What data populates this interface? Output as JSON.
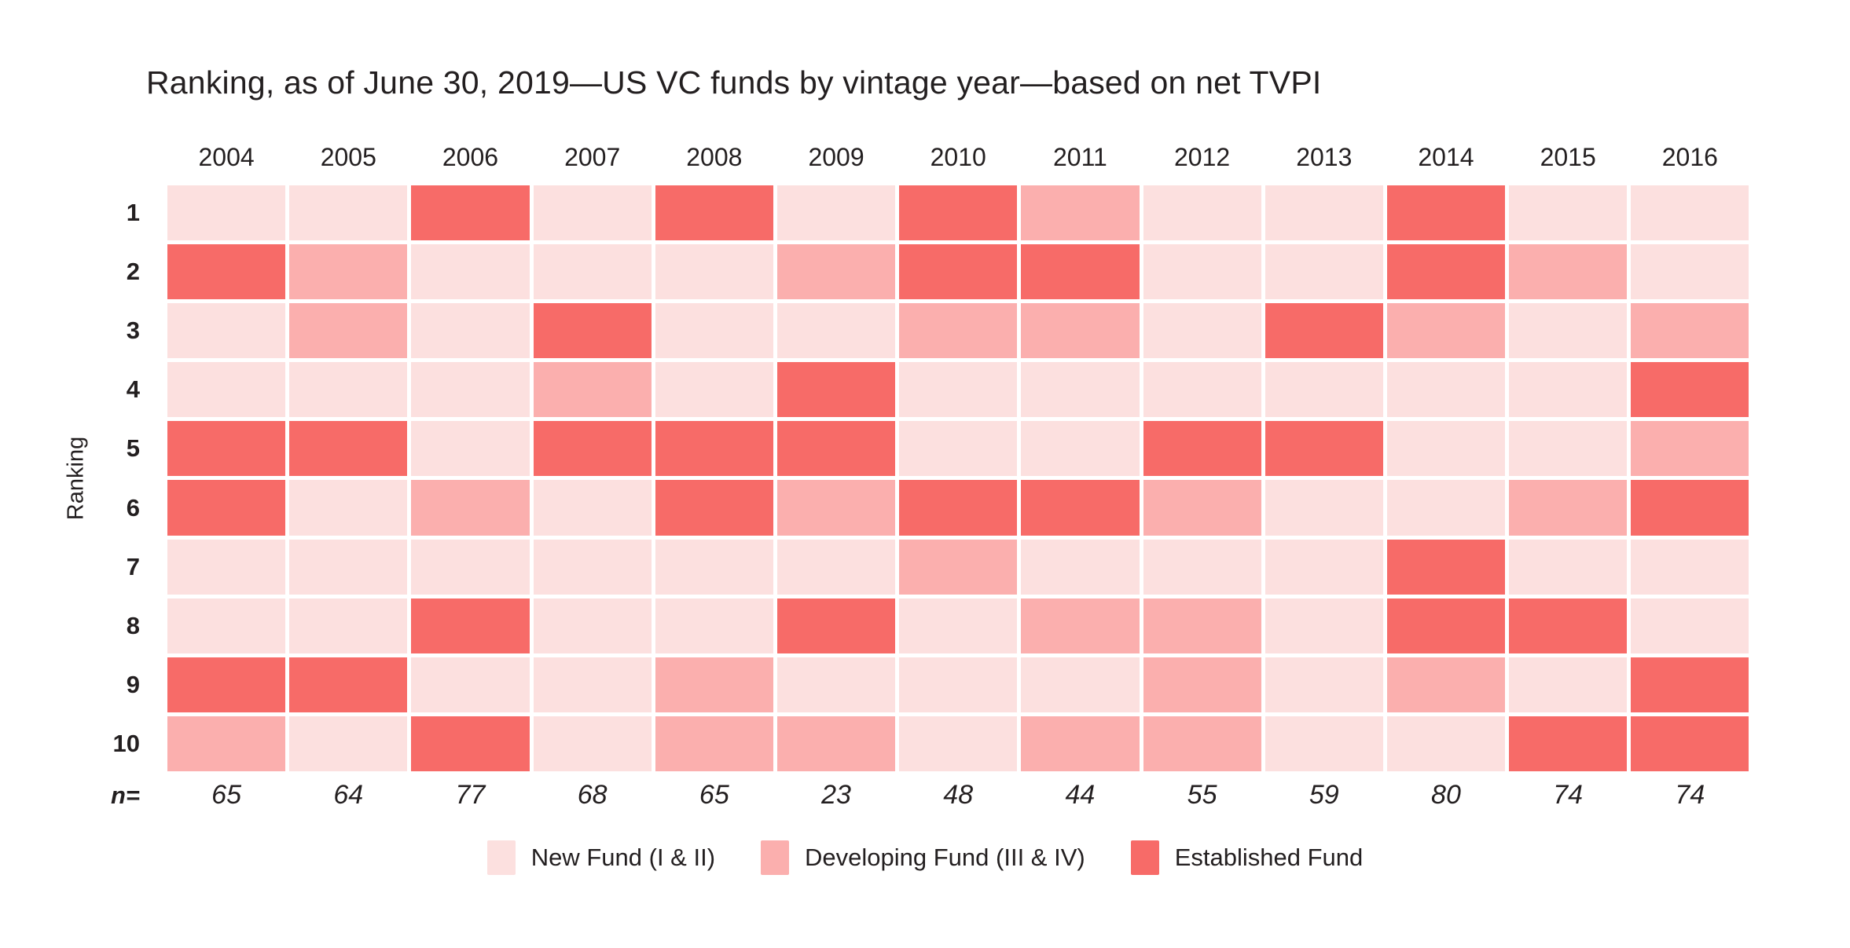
{
  "title": "Ranking, as of June 30, 2019—US VC funds by vintage year—based on net TVPI",
  "colors": {
    "new_fund": "#FCE0DF",
    "developing_fund": "#FBAFAE",
    "established_fund": "#F76B68",
    "text": "#231F20",
    "background": "#FFFFFF"
  },
  "legend": {
    "items": [
      {
        "label": "New Fund (I & II)",
        "category": 0
      },
      {
        "label": "Developing Fund (III & IV)",
        "category": 1
      },
      {
        "label": "Established Fund",
        "category": 2
      }
    ]
  },
  "chart_data": {
    "type": "heatmap",
    "title": "Ranking, as of June 30, 2019—US VC funds by vintage year—based on net TVPI",
    "xlabel": "",
    "ylabel": "Ranking",
    "legend_position": "bottom",
    "grid": "white gaps between cells",
    "columns": [
      "2004",
      "2005",
      "2006",
      "2007",
      "2008",
      "2009",
      "2010",
      "2011",
      "2012",
      "2013",
      "2014",
      "2015",
      "2016"
    ],
    "rows": [
      "1",
      "2",
      "3",
      "4",
      "5",
      "6",
      "7",
      "8",
      "9",
      "10"
    ],
    "category_names": [
      "New Fund (I & II)",
      "Developing Fund (III & IV)",
      "Established Fund"
    ],
    "cells": [
      [
        0,
        0,
        2,
        0,
        2,
        0,
        2,
        1,
        0,
        0,
        2,
        0,
        0
      ],
      [
        2,
        1,
        0,
        0,
        0,
        1,
        2,
        2,
        0,
        0,
        2,
        1,
        0
      ],
      [
        0,
        1,
        0,
        2,
        0,
        0,
        1,
        1,
        0,
        2,
        1,
        0,
        1
      ],
      [
        0,
        0,
        0,
        1,
        0,
        2,
        0,
        0,
        0,
        0,
        0,
        0,
        2
      ],
      [
        2,
        2,
        0,
        2,
        2,
        2,
        0,
        0,
        2,
        2,
        0,
        0,
        1
      ],
      [
        2,
        0,
        1,
        0,
        2,
        1,
        2,
        2,
        1,
        0,
        0,
        1,
        2
      ],
      [
        0,
        0,
        0,
        0,
        0,
        0,
        1,
        0,
        0,
        0,
        2,
        0,
        0
      ],
      [
        0,
        0,
        2,
        0,
        0,
        2,
        0,
        1,
        1,
        0,
        2,
        2,
        0
      ],
      [
        2,
        2,
        0,
        0,
        1,
        0,
        0,
        0,
        1,
        0,
        1,
        0,
        2
      ],
      [
        1,
        0,
        2,
        0,
        1,
        1,
        0,
        1,
        1,
        0,
        0,
        2,
        2
      ]
    ],
    "n_label": "n=",
    "n_values": [
      65,
      64,
      77,
      68,
      65,
      23,
      48,
      44,
      55,
      59,
      80,
      74,
      74
    ]
  }
}
